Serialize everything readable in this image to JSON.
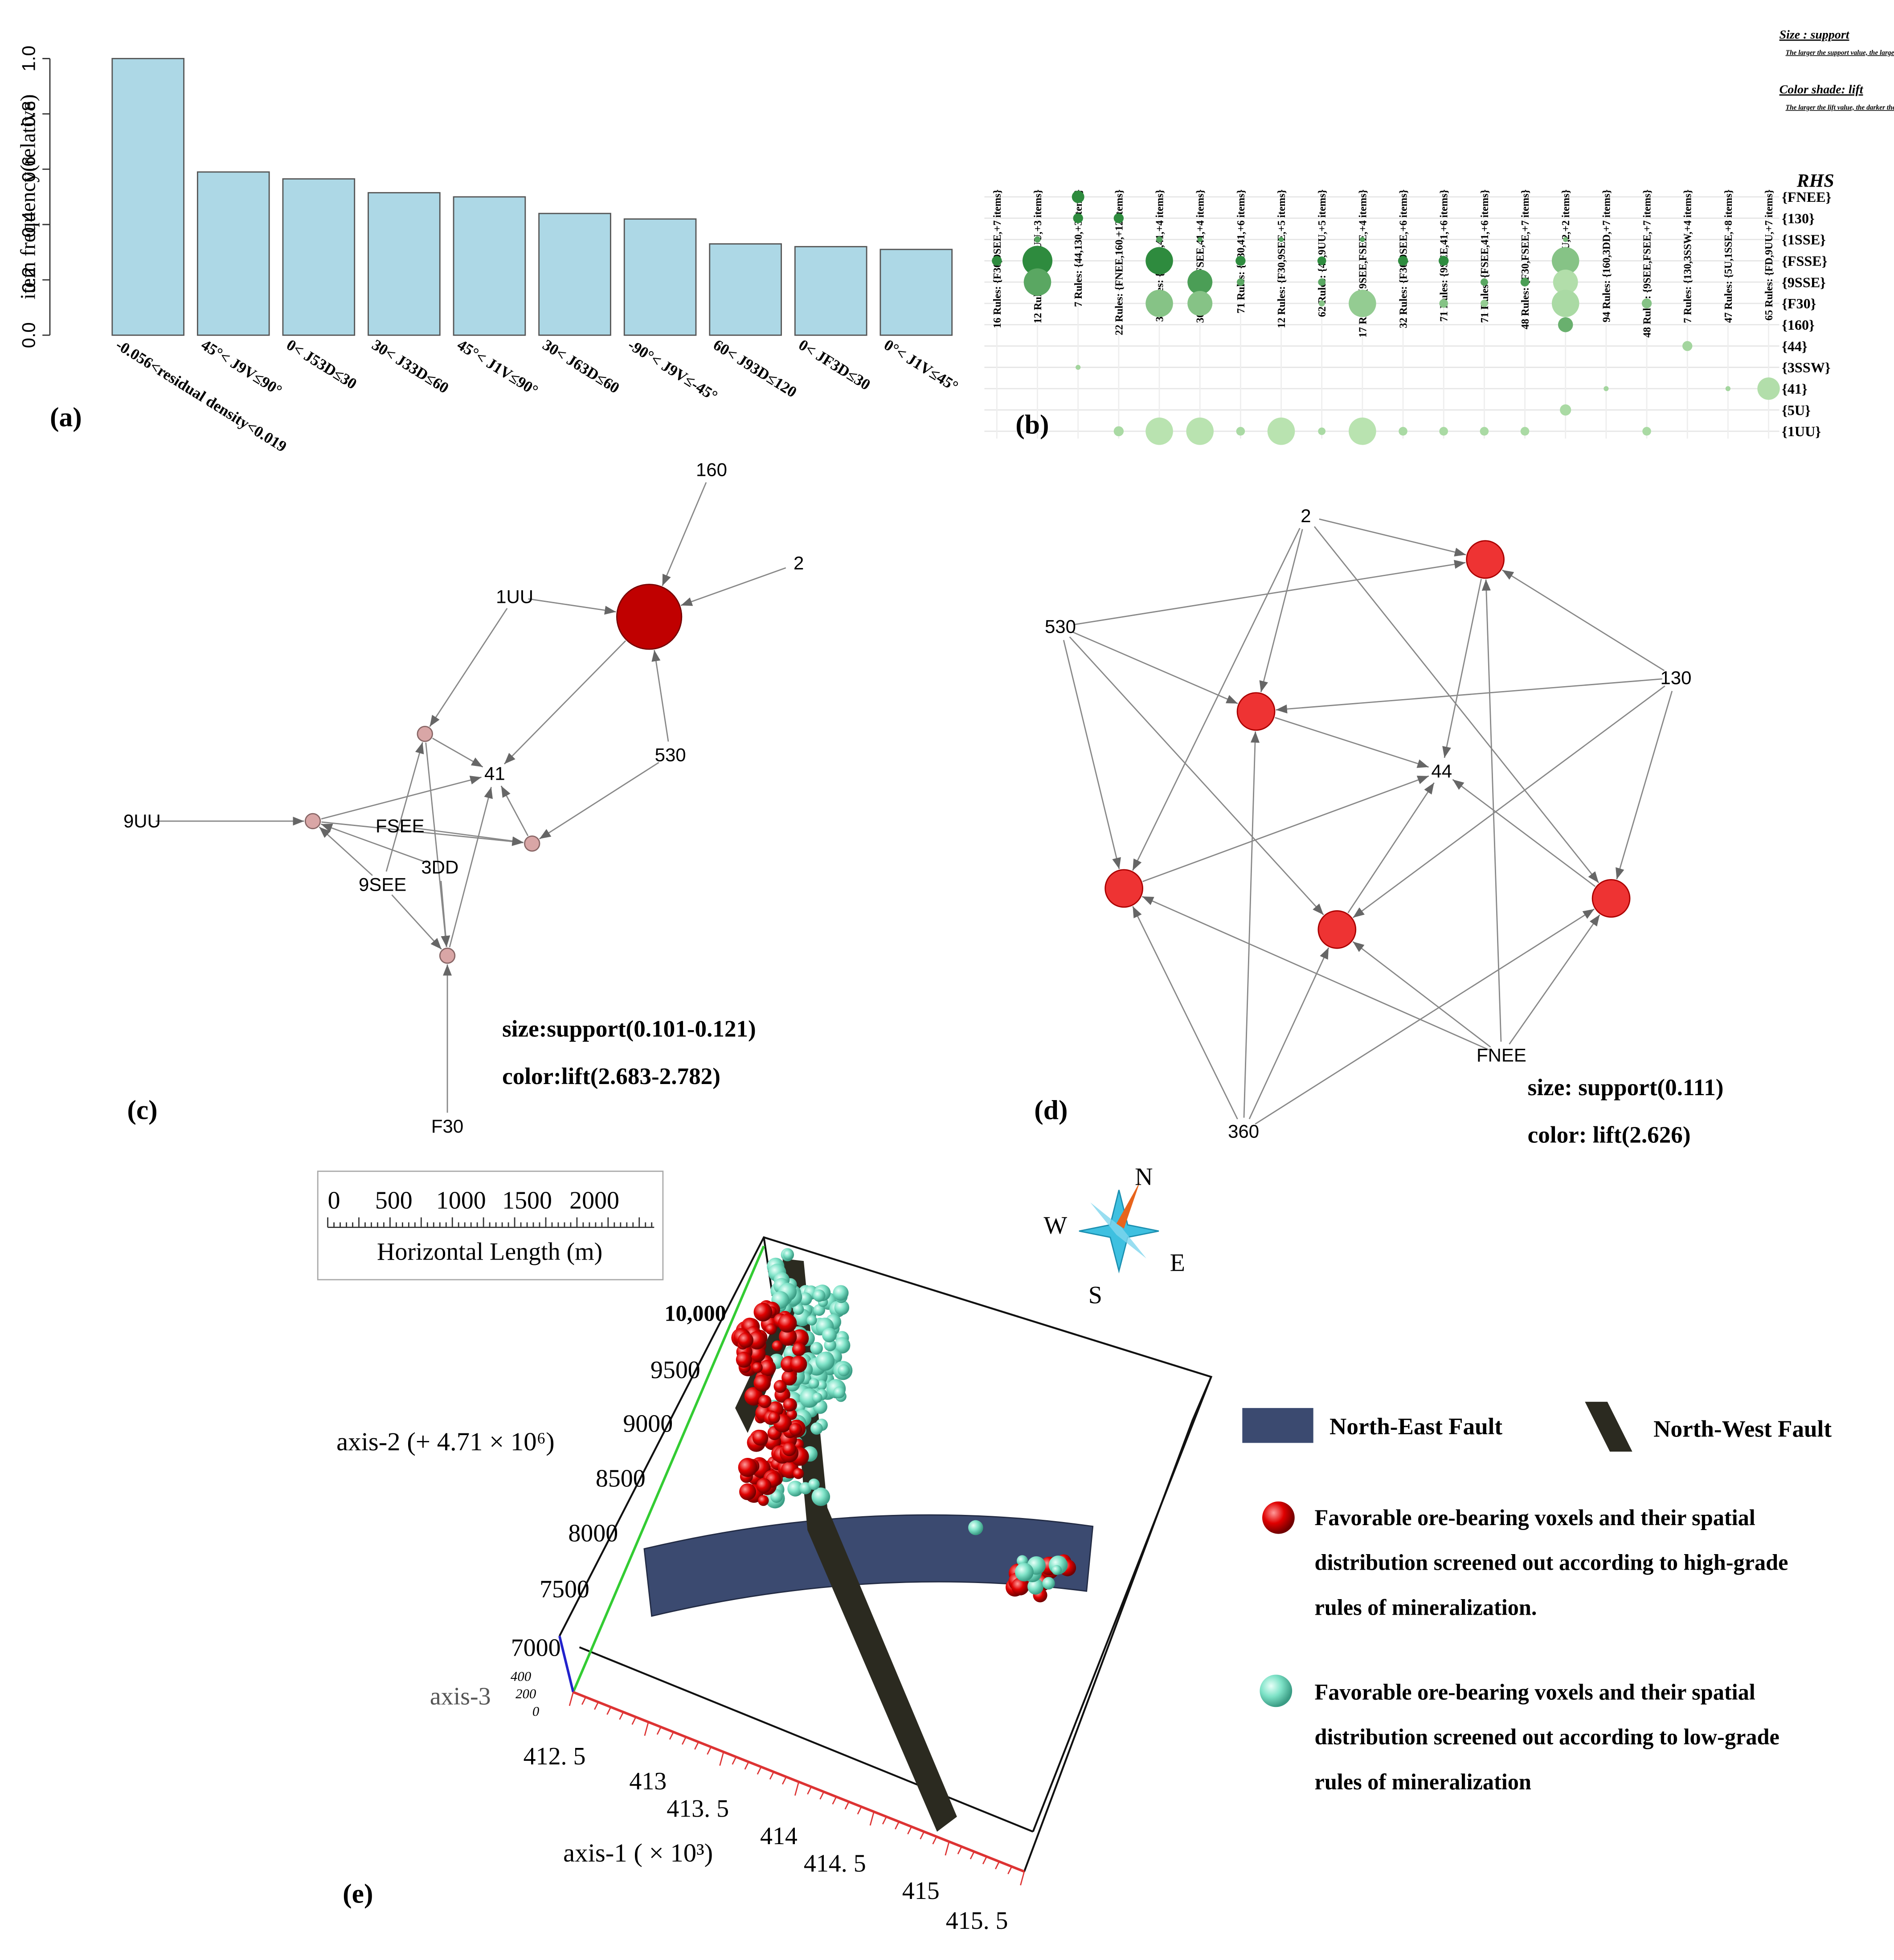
{
  "chart_data": [
    {
      "type": "bar",
      "label": "(a)",
      "ylabel": "item frequency(relative)",
      "categories": [
        "-0.056<residual density<0.019",
        "45°< J9V≤90°",
        "0< J53D≤30",
        "30< J33D≤60",
        "45°< J1V≤90°",
        "30< J63D≤60",
        "-90°< J9V≤-45°",
        "60< J93D≤120",
        "0< JF3D≤30",
        "0°< J1V≤45°"
      ],
      "values": [
        1.0,
        0.59,
        0.565,
        0.515,
        0.5,
        0.44,
        0.42,
        0.33,
        0.32,
        0.31
      ],
      "color": "#add8e6",
      "ylim": [
        0,
        1
      ],
      "yticks": [
        {
          "value": 0,
          "label": "0.0"
        },
        0.2,
        0.4,
        0.6,
        0.8,
        {
          "value": 1,
          "label": "1.0"
        }
      ]
    },
    {
      "type": "bubble-matrix",
      "label": "(b)",
      "rhs_title": "RHS",
      "legend": [
        "Size : support",
        "The larger the support value, the larger the circle.",
        "Color shade: lift",
        "The larger the lift value, the darker the color."
      ],
      "columns": [
        "16 Rules: {F30,9SEE,+7 items}",
        "12 Rules: {F30,1UU,+3 items}",
        "7 Rules: {44,130,+3 items}",
        "22 Rules: {FNEE,160,+12 items}",
        "30 Rules: {9SEE,41,+4 items}",
        "30 Rules: {FSEE,41,+4 items}",
        "71 Rules: {F30,41,+6 items}",
        "12 Rules: {F30,9SEE,+5 items}",
        "62 Rules: {41,9UU,+5 items}",
        "17 Rules: {9SEE,FSEE,+4 items}",
        "32 Rules: {F30,9SEE,+6 items}",
        "71 Rules: {9SEE,41,+6 items}",
        "71 Rules: {FSEE,41,+6 items}",
        "48 Rules: {F30,FSEE,+7 items}",
        "6 Rules: {1UU,2,+2 items}",
        "94 Rules: {160,3DD,+7 items}",
        "48 Rules: {9SEE,FSEE,+7 items}",
        "7 Rules: {130,3SSW,+4 items}",
        "47 Rules: {5U,1SSE,+8 items}",
        "65 Rules: {FD,9UU,+7 items}"
      ],
      "rows": [
        "{FNEE}",
        "{130}",
        "{1SSE}",
        "{FSSE}",
        "{9SSE}",
        "{F30}",
        "{160}",
        "{44}",
        "{3SSW}",
        "{41}",
        "{5U}",
        "{1UU}"
      ],
      "colors": [
        "#b9e3b0",
        "#2e8b3e"
      ],
      "points": [
        {
          "column": 2,
          "row": 0,
          "support": 5,
          "lift": 3
        },
        {
          "column": 2,
          "row": 1,
          "support": 4,
          "lift": 3
        },
        {
          "column": 3,
          "row": 1,
          "support": 4,
          "lift": 3
        },
        {
          "column": 1,
          "row": 2,
          "support": 2.5,
          "lift": 2.5
        },
        {
          "column": 4,
          "row": 2,
          "support": 2.5,
          "lift": 2.5
        },
        {
          "column": 5,
          "row": 2,
          "support": 2,
          "lift": 2.5
        },
        {
          "column": 7,
          "row": 2,
          "support": 2,
          "lift": 2.5
        },
        {
          "column": 9,
          "row": 2,
          "support": 2,
          "lift": 2.5
        },
        {
          "column": 14,
          "row": 2,
          "support": 2,
          "lift": 2
        },
        {
          "column": 0,
          "row": 3,
          "support": 4,
          "lift": 3
        },
        {
          "column": 1,
          "row": 3,
          "support": 12,
          "lift": 3
        },
        {
          "column": 4,
          "row": 3,
          "support": 11,
          "lift": 3
        },
        {
          "column": 6,
          "row": 3,
          "support": 4,
          "lift": 3
        },
        {
          "column": 8,
          "row": 3,
          "support": 3.5,
          "lift": 3
        },
        {
          "column": 10,
          "row": 3,
          "support": 4,
          "lift": 3
        },
        {
          "column": 11,
          "row": 3,
          "support": 4,
          "lift": 3
        },
        {
          "column": 14,
          "row": 3,
          "support": 11,
          "lift": 1.8
        },
        {
          "column": 1,
          "row": 4,
          "support": 11,
          "lift": 2.4
        },
        {
          "column": 5,
          "row": 4,
          "support": 10,
          "lift": 2.6
        },
        {
          "column": 6,
          "row": 4,
          "support": 3,
          "lift": 2.4
        },
        {
          "column": 8,
          "row": 4,
          "support": 3,
          "lift": 2.4
        },
        {
          "column": 12,
          "row": 4,
          "support": 3,
          "lift": 2.4
        },
        {
          "column": 13,
          "row": 4,
          "support": 3.5,
          "lift": 2.6
        },
        {
          "column": 14,
          "row": 4,
          "support": 10,
          "lift": 1.2
        },
        {
          "column": 4,
          "row": 5,
          "support": 11,
          "lift": 1.8
        },
        {
          "column": 5,
          "row": 5,
          "support": 10,
          "lift": 1.8
        },
        {
          "column": 8,
          "row": 5,
          "support": 2.5,
          "lift": 1.8
        },
        {
          "column": 9,
          "row": 5,
          "support": 11,
          "lift": 1.6
        },
        {
          "column": 11,
          "row": 5,
          "support": 3.5,
          "lift": 1.8
        },
        {
          "column": 12,
          "row": 5,
          "support": 3,
          "lift": 1.6
        },
        {
          "column": 14,
          "row": 5,
          "support": 11,
          "lift": 1.3
        },
        {
          "column": 16,
          "row": 5,
          "support": 4,
          "lift": 1.8
        },
        {
          "column": 14,
          "row": 6,
          "support": 6,
          "lift": 2.2
        },
        {
          "column": 17,
          "row": 7,
          "support": 4,
          "lift": 1.4
        },
        {
          "column": 2,
          "row": 8,
          "support": 2,
          "lift": 1.4
        },
        {
          "column": 15,
          "row": 9,
          "support": 2,
          "lift": 1.4
        },
        {
          "column": 18,
          "row": 9,
          "support": 2,
          "lift": 1.4
        },
        {
          "column": 19,
          "row": 9,
          "support": 9,
          "lift": 1.2
        },
        {
          "column": 14,
          "row": 10,
          "support": 4.5,
          "lift": 1.3
        },
        {
          "column": 3,
          "row": 11,
          "support": 4,
          "lift": 1.3
        },
        {
          "column": 4,
          "row": 11,
          "support": 11,
          "lift": 1.1
        },
        {
          "column": 5,
          "row": 11,
          "support": 11,
          "lift": 1.1
        },
        {
          "column": 6,
          "row": 11,
          "support": 3.5,
          "lift": 1.3
        },
        {
          "column": 7,
          "row": 11,
          "support": 11,
          "lift": 1.1
        },
        {
          "column": 8,
          "row": 11,
          "support": 3,
          "lift": 1.3
        },
        {
          "column": 9,
          "row": 11,
          "support": 11,
          "lift": 1.1
        },
        {
          "column": 10,
          "row": 11,
          "support": 3.5,
          "lift": 1.3
        },
        {
          "column": 11,
          "row": 11,
          "support": 3.5,
          "lift": 1.3
        },
        {
          "column": 12,
          "row": 11,
          "support": 3.5,
          "lift": 1.3
        },
        {
          "column": 13,
          "row": 11,
          "support": 3.5,
          "lift": 1.3
        },
        {
          "column": 16,
          "row": 11,
          "support": 3.5,
          "lift": 1.3
        }
      ]
    },
    {
      "type": "network",
      "label": "(c)",
      "nodes": [
        "160",
        "2",
        "1UU",
        "41",
        "530",
        "9UU",
        "FSEE",
        "3DD",
        "9SEE",
        "F30"
      ],
      "legend": [
        "size:support(0.101-0.121)",
        "color:lift(2.683-2.782)"
      ]
    },
    {
      "type": "network",
      "label": "(d)",
      "nodes": [
        "2",
        "530",
        "130",
        "44",
        "FNEE",
        "360"
      ],
      "legend": [
        "size: support(0.111)",
        "color: lift(2.626)"
      ]
    }
  ],
  "panel_e": {
    "label": "(e)",
    "scale_bar": {
      "ticks": [
        "0",
        "500",
        "1000",
        "1500",
        "2000"
      ],
      "title": "Horizontal Length (m)"
    },
    "axis2": {
      "title": "axis-2 (+ 4.71 × 10⁶)",
      "ticks": [
        "7000",
        "7500",
        "8000",
        "8500",
        "9000",
        "9500",
        "10,000"
      ]
    },
    "axis3": {
      "title": "axis-3",
      "ticks": [
        "0",
        "200",
        "400"
      ]
    },
    "axis1": {
      "title": "axis-1 ( × 10³)",
      "ticks": [
        "412. 5",
        "413",
        "413. 5",
        "414",
        "414. 5",
        "415",
        "415. 5"
      ]
    },
    "compass": {
      "n": "N",
      "e": "E",
      "s": "S",
      "w": "W"
    },
    "legend": {
      "ne_fault": "North-East Fault",
      "nw_fault": "North-West Fault",
      "high_grade": [
        "Favorable ore-bearing voxels and their spatial",
        "distribution screened out according to high-grade",
        "rules of mineralization."
      ],
      "low_grade": [
        "Favorable ore-bearing voxels and their spatial",
        "distribution screened out according to low-grade",
        "rules of mineralization"
      ]
    }
  }
}
